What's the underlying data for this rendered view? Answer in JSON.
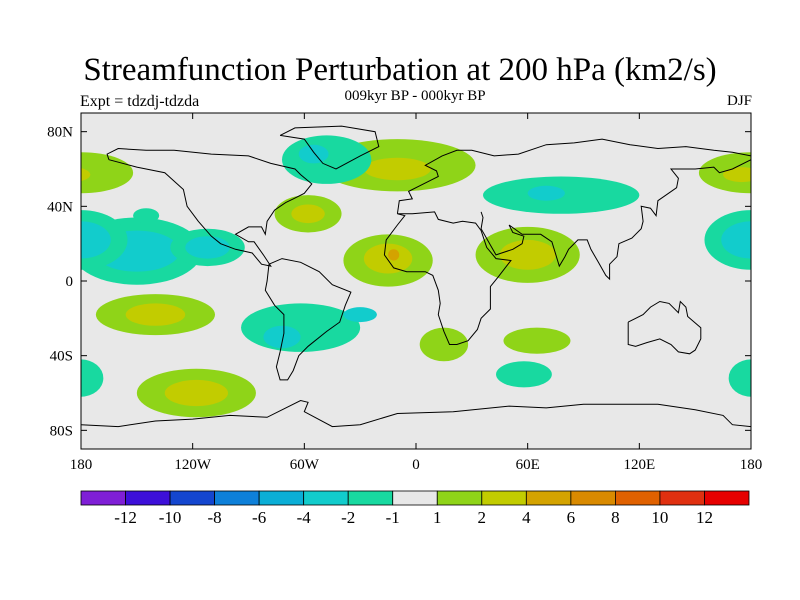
{
  "chart_data": {
    "type": "heatmap",
    "title": "Streamfunction Perturbation at 200 hPa (km2/s)",
    "subtitle": "009kyr BP - 000kyr BP",
    "left_label": "Expt = tdzdj-tdzda",
    "right_label": "DJF",
    "x_axis": {
      "range": [
        -180,
        180
      ],
      "ticks": [
        -180,
        -120,
        -60,
        0,
        60,
        120,
        180
      ],
      "tick_labels": [
        "180",
        "120W",
        "60W",
        "0",
        "60E",
        "120E",
        "180"
      ]
    },
    "y_axis": {
      "range": [
        -90,
        90
      ],
      "ticks": [
        80,
        40,
        0,
        -40,
        -80
      ],
      "tick_labels": [
        "80N",
        "40N",
        "0",
        "40S",
        "80S"
      ]
    },
    "colorbar": {
      "colors": [
        "#7f1fd6",
        "#3d0fd9",
        "#1446cf",
        "#0e80d9",
        "#0aaed6",
        "#12cccc",
        "#18d9a0",
        "#e8e8e8",
        "#8fd418",
        "#c2cc00",
        "#d4a300",
        "#d98a00",
        "#e06100",
        "#e03010",
        "#e60000"
      ],
      "labels": [
        "-12",
        "-10",
        "-8",
        "-6",
        "-4",
        "-2",
        "-1",
        "1",
        "2",
        "4",
        "6",
        "8",
        "10",
        "12"
      ]
    },
    "regions": [
      {
        "name": "n-atlantic-high",
        "lon": -10,
        "lat": 62,
        "rlon": 42,
        "rlat": 14,
        "color": "#8fd418"
      },
      {
        "name": "n-atlantic-high-core",
        "lon": -10,
        "lat": 60,
        "rlon": 18,
        "rlat": 6,
        "color": "#c2cc00"
      },
      {
        "name": "greenland-low",
        "lon": -48,
        "lat": 65,
        "rlon": 24,
        "rlat": 13,
        "color": "#18d9a0"
      },
      {
        "name": "greenland-low-core",
        "lon": -55,
        "lat": 68,
        "rlon": 8,
        "rlat": 5,
        "color": "#12cccc"
      },
      {
        "name": "n-america-high",
        "lon": -58,
        "lat": 36,
        "rlon": 18,
        "rlat": 10,
        "color": "#8fd418"
      },
      {
        "name": "n-america-high-core",
        "lon": -58,
        "lat": 36,
        "rlon": 9,
        "rlat": 5,
        "color": "#c2cc00"
      },
      {
        "name": "pacific-low",
        "lon": -150,
        "lat": 16,
        "rlon": 35,
        "rlat": 18,
        "color": "#18d9a0"
      },
      {
        "name": "pacific-low-core",
        "lon": -150,
        "lat": 16,
        "rlon": 23,
        "rlat": 11,
        "color": "#12cccc"
      },
      {
        "name": "pacific-low-2",
        "lon": -112,
        "lat": 18,
        "rlon": 20,
        "rlat": 10,
        "color": "#18d9a0"
      },
      {
        "name": "pacific-low-2-core",
        "lon": -112,
        "lat": 18,
        "rlon": 12,
        "rlat": 6,
        "color": "#12cccc"
      },
      {
        "name": "nw-pacific-small-low",
        "lon": -145,
        "lat": 35,
        "rlon": 7,
        "rlat": 4,
        "color": "#18d9a0"
      },
      {
        "name": "s-pacific-high",
        "lon": -140,
        "lat": -18,
        "rlon": 32,
        "rlat": 11,
        "color": "#8fd418"
      },
      {
        "name": "s-pacific-high-core",
        "lon": -140,
        "lat": -18,
        "rlon": 16,
        "rlat": 6,
        "color": "#c2cc00"
      },
      {
        "name": "s-america-low",
        "lon": -62,
        "lat": -25,
        "rlon": 32,
        "rlat": 13,
        "color": "#18d9a0"
      },
      {
        "name": "s-america-low-core",
        "lon": -72,
        "lat": -30,
        "rlon": 10,
        "rlat": 6,
        "color": "#12cccc"
      },
      {
        "name": "s-atlantic-low-core",
        "lon": -30,
        "lat": -18,
        "rlon": 9,
        "rlat": 4,
        "color": "#12cccc"
      },
      {
        "name": "s-ocean-high",
        "lon": -118,
        "lat": -60,
        "rlon": 32,
        "rlat": 13,
        "color": "#8fd418"
      },
      {
        "name": "s-ocean-high-core",
        "lon": -118,
        "lat": -60,
        "rlon": 17,
        "rlat": 7,
        "color": "#c2cc00"
      },
      {
        "name": "africa-high",
        "lon": -15,
        "lat": 11,
        "rlon": 24,
        "rlat": 14,
        "color": "#8fd418"
      },
      {
        "name": "africa-high-core",
        "lon": -15,
        "lat": 12,
        "rlon": 13,
        "rlat": 8,
        "color": "#c2cc00"
      },
      {
        "name": "africa-high-center",
        "lon": -12,
        "lat": 14,
        "rlon": 3,
        "rlat": 3,
        "color": "#d4a300"
      },
      {
        "name": "arabia-high",
        "lon": 60,
        "lat": 14,
        "rlon": 28,
        "rlat": 15,
        "color": "#8fd418"
      },
      {
        "name": "arabia-high-core",
        "lon": 60,
        "lat": 14,
        "rlon": 15,
        "rlat": 8,
        "color": "#c2cc00"
      },
      {
        "name": "asia-low",
        "lon": 78,
        "lat": 46,
        "rlon": 42,
        "rlat": 10,
        "color": "#18d9a0"
      },
      {
        "name": "asia-low-core",
        "lon": 70,
        "lat": 47,
        "rlon": 10,
        "rlat": 4,
        "color": "#12cccc"
      },
      {
        "name": "ne-pacific-high",
        "lon": 180,
        "lat": 58,
        "rlon": 28,
        "rlat": 11,
        "color": "#8fd418"
      },
      {
        "name": "ne-pacific-high-core",
        "lon": 175,
        "lat": 57,
        "rlon": 10,
        "rlat": 4,
        "color": "#c2cc00"
      },
      {
        "name": "w-pacific-low",
        "lon": 180,
        "lat": 22,
        "rlon": 25,
        "rlat": 16,
        "color": "#18d9a0"
      },
      {
        "name": "w-pacific-low-core",
        "lon": 180,
        "lat": 22,
        "rlon": 16,
        "rlat": 10,
        "color": "#12cccc"
      },
      {
        "name": "s-indian-high",
        "lon": 15,
        "lat": -34,
        "rlon": 13,
        "rlat": 9,
        "color": "#8fd418"
      },
      {
        "name": "s-indian-high-2",
        "lon": 65,
        "lat": -32,
        "rlon": 18,
        "rlat": 7,
        "color": "#8fd418"
      },
      {
        "name": "s-indian-low",
        "lon": 58,
        "lat": -50,
        "rlon": 15,
        "rlat": 7,
        "color": "#18d9a0"
      },
      {
        "name": "tasman-low",
        "lon": 180,
        "lat": -52,
        "rlon": 12,
        "rlat": 10,
        "color": "#18d9a0"
      }
    ]
  }
}
